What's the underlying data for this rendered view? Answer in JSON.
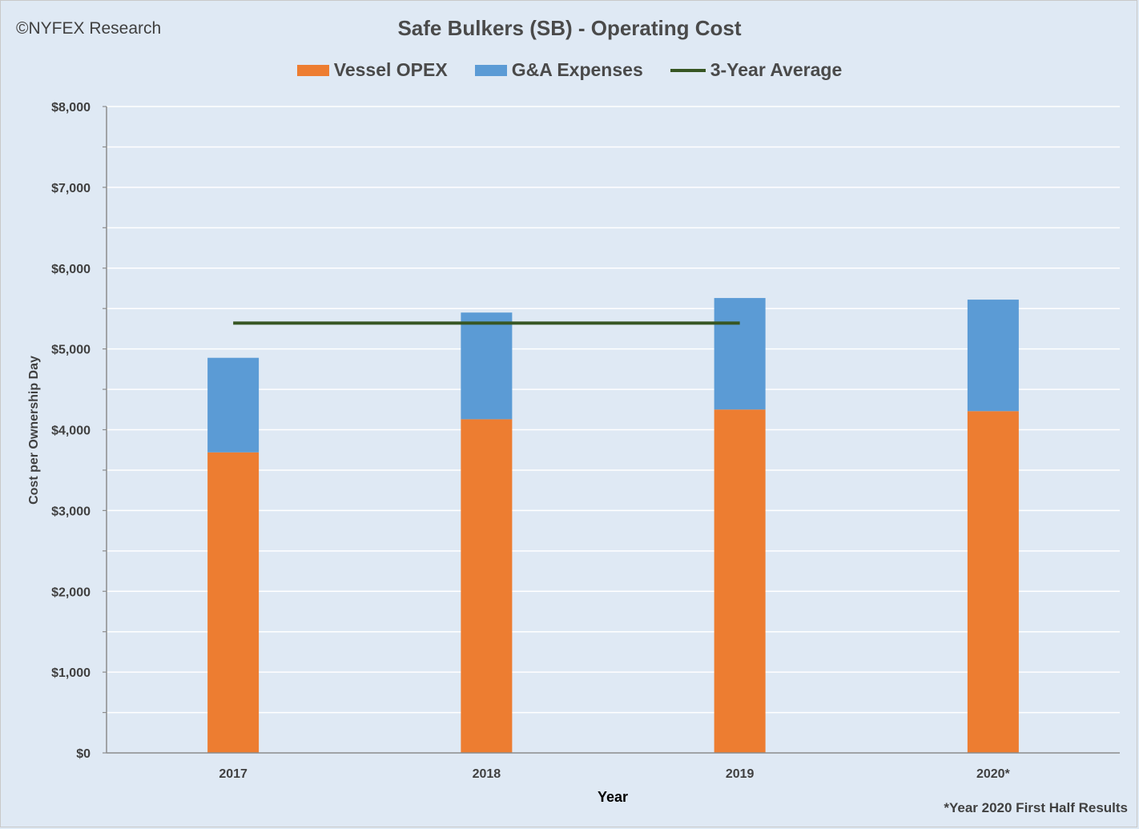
{
  "header": {
    "copyright": "©NYFEX Research"
  },
  "chart_data": {
    "type": "bar",
    "stacked": true,
    "title": "Safe Bulkers (SB) - Operating Cost",
    "xlabel": "Year",
    "ylabel": "Cost per Ownership Day",
    "categories": [
      "2017",
      "2018",
      "2019",
      "2020*"
    ],
    "series": [
      {
        "name": "Vessel OPEX",
        "type": "bar",
        "color": "#ed7d31",
        "values": [
          3720,
          4130,
          4250,
          4230
        ]
      },
      {
        "name": "G&A Expenses",
        "type": "bar",
        "color": "#5b9bd5",
        "values": [
          1170,
          1320,
          1380,
          1380
        ]
      },
      {
        "name": "3-Year Average",
        "type": "line",
        "color": "#375623",
        "x_range": [
          "2017",
          "2019"
        ],
        "value": 5320
      }
    ],
    "ylim": [
      0,
      8000
    ],
    "yticks": [
      {
        "value": 0,
        "label": "$0"
      },
      {
        "value": 1000,
        "label": "$1,000"
      },
      {
        "value": 2000,
        "label": "$2,000"
      },
      {
        "value": 3000,
        "label": "$3,000"
      },
      {
        "value": 4000,
        "label": "$4,000"
      },
      {
        "value": 5000,
        "label": "$5,000"
      },
      {
        "value": 6000,
        "label": "$6,000"
      },
      {
        "value": 7000,
        "label": "$7,000"
      },
      {
        "value": 8000,
        "label": "$8,000"
      }
    ],
    "grid": true,
    "legend": "top-center",
    "footnote": "*Year 2020 First Half Results"
  }
}
